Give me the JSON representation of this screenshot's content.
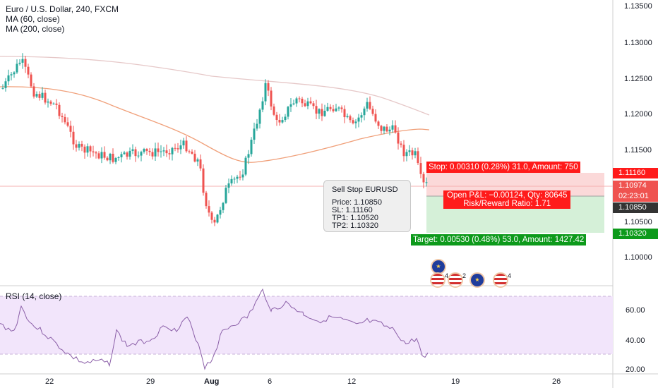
{
  "legend": {
    "title": "Euro / U.S. Dollar, 240, FXCM",
    "ma60": "MA (60, close)",
    "ma200": "MA (200, close)",
    "rsi": "RSI (14, close)"
  },
  "price_axis": [
    "1.13500",
    "1.13000",
    "1.12500",
    "1.12000",
    "1.11500",
    "1.11000",
    "1.10500",
    "1.10000"
  ],
  "rsi_axis": [
    "60.00",
    "40.00",
    "20.00"
  ],
  "time_axis": [
    "22",
    "29",
    "Aug",
    "6",
    "12",
    "19",
    "26"
  ],
  "price_labels": {
    "stop": "1.11160",
    "current": "1.10974",
    "countdown": "02:23:01",
    "entry": "1.10850",
    "target": "1.10320"
  },
  "order_box": {
    "title": "Sell Stop EURUSD",
    "price": "Price: 1.10850",
    "sl": "SL: 1.11160",
    "tp1": "TP1: 1.10520",
    "tp2": "TP2: 1.10320"
  },
  "position_tool": {
    "stop_text": "Stop: 0.00310 (0.28%) 31.0, Amount: 750",
    "pl_text": "Open P&L: −0.00124, Qty: 80645",
    "rr_text": "Risk/Reward Ratio: 1.71",
    "target_text": "Target: 0.00530 (0.48%) 53.0, Amount: 1427.42"
  },
  "events": [
    {
      "icon": "eu-flag-icon",
      "count": ""
    },
    {
      "icon": "us-flag-icon",
      "count": "4"
    },
    {
      "icon": "us-flag-icon",
      "count": "2"
    },
    {
      "icon": "eu-flag-icon",
      "count": ""
    },
    {
      "icon": "us-flag-icon",
      "count": "4"
    }
  ],
  "colors": {
    "up": "#26a69a",
    "down": "#ef5350",
    "ma60": "#f0a07a",
    "ma200": "#e6c8c8",
    "rsi_line": "#8b5fa8",
    "rsi_band": "#f2e5fb",
    "stop_zone": "#fbd9d9",
    "target_zone": "#d5f0d8",
    "stop_tag": "#ff1b1b",
    "target_tag": "#0d9a1b"
  }
}
